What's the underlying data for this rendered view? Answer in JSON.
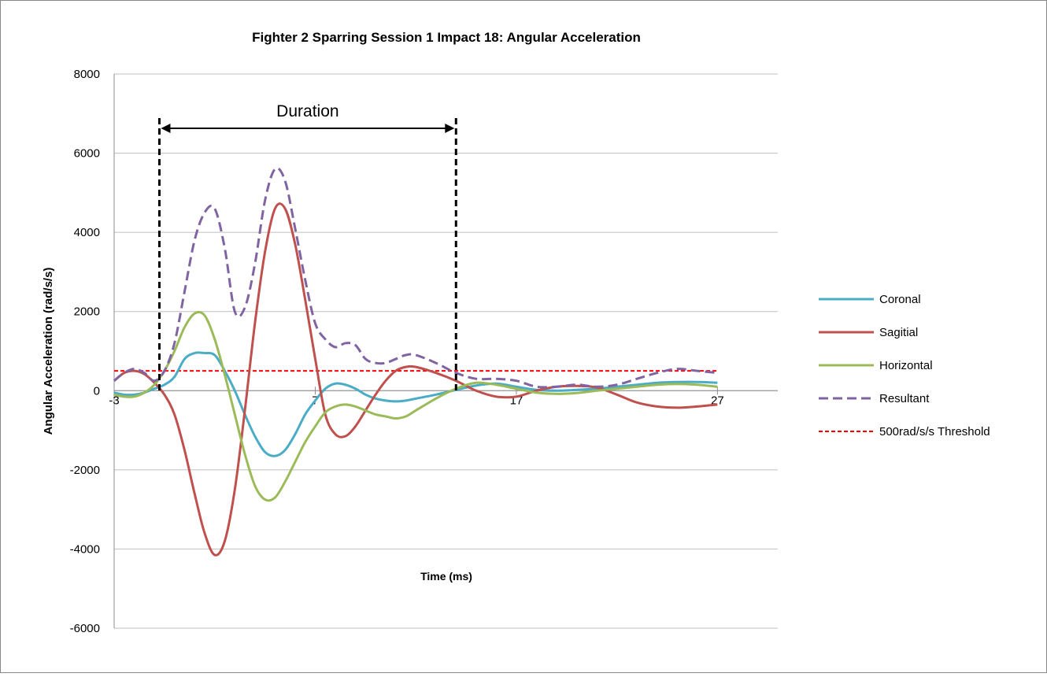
{
  "chart_data": {
    "type": "line",
    "title": "Fighter 2  Sparring Session 1 Impact 18:    Angular Acceleration",
    "x_label": "Time (ms)",
    "y_label": "Angular Acceleration (rad/s/s)",
    "x": [
      -3,
      -2.5,
      -2,
      -1.5,
      -1,
      -0.5,
      0,
      0.5,
      1,
      1.5,
      2,
      2.5,
      3,
      3.5,
      4,
      4.5,
      5,
      5.5,
      6,
      6.5,
      7,
      7.5,
      8,
      8.5,
      9,
      9.5,
      10,
      10.5,
      11,
      11.5,
      12,
      13,
      14,
      15,
      16,
      17,
      18,
      19,
      20,
      21,
      22,
      23,
      24,
      25,
      26,
      27
    ],
    "series": [
      {
        "name": "Coronal",
        "color": "#4bacc6",
        "dashed": false,
        "values": [
          -50,
          -100,
          -100,
          -50,
          50,
          150,
          350,
          800,
          950,
          950,
          900,
          500,
          0,
          -600,
          -1150,
          -1550,
          -1650,
          -1500,
          -1100,
          -600,
          -250,
          50,
          180,
          150,
          50,
          -100,
          -200,
          -250,
          -270,
          -250,
          -200,
          -100,
          20,
          130,
          180,
          100,
          20,
          0,
          20,
          50,
          100,
          150,
          200,
          220,
          220,
          200
        ]
      },
      {
        "name": "Sagitial",
        "color": "#c0504d",
        "dashed": false,
        "values": [
          250,
          450,
          500,
          420,
          200,
          -100,
          -600,
          -1500,
          -2600,
          -3600,
          -4150,
          -3800,
          -2500,
          -500,
          1700,
          3500,
          4600,
          4600,
          3700,
          2300,
          800,
          -600,
          -1100,
          -1150,
          -900,
          -500,
          -100,
          250,
          500,
          600,
          600,
          450,
          250,
          0,
          -150,
          -150,
          0,
          100,
          120,
          80,
          -100,
          -300,
          -400,
          -430,
          -400,
          -350
        ]
      },
      {
        "name": "Horizontal",
        "color": "#9bbb59",
        "dashed": false,
        "values": [
          -100,
          -150,
          -150,
          -50,
          150,
          500,
          1000,
          1600,
          1950,
          1900,
          1300,
          400,
          -600,
          -1600,
          -2400,
          -2750,
          -2700,
          -2300,
          -1800,
          -1300,
          -900,
          -550,
          -400,
          -350,
          -400,
          -500,
          -600,
          -650,
          -700,
          -650,
          -500,
          -200,
          50,
          200,
          150,
          50,
          -50,
          -80,
          -60,
          0,
          50,
          100,
          150,
          170,
          150,
          100
        ]
      },
      {
        "name": "Resultant",
        "color": "#8064a2",
        "dashed": true,
        "values": [
          250,
          450,
          550,
          450,
          250,
          500,
          1200,
          2500,
          3800,
          4500,
          4600,
          3600,
          2000,
          2100,
          3200,
          4800,
          5600,
          5300,
          4100,
          2800,
          1700,
          1300,
          1100,
          1200,
          1150,
          800,
          700,
          700,
          800,
          900,
          900,
          700,
          450,
          300,
          300,
          250,
          100,
          100,
          150,
          100,
          150,
          300,
          450,
          550,
          500,
          450
        ]
      }
    ],
    "threshold": {
      "name": "500rad/s/s Threshold",
      "value": 500,
      "color": "#ff0000"
    },
    "duration": {
      "label": "Duration",
      "start": -0.75,
      "end": 14
    },
    "xlim": [
      -3,
      30
    ],
    "xticks": [
      -3,
      7,
      17,
      27
    ],
    "ylim": [
      -6000,
      8000
    ],
    "yticks": [
      -6000,
      -4000,
      -2000,
      0,
      2000,
      4000,
      6000,
      8000
    ],
    "grid": true,
    "legend": "right"
  }
}
